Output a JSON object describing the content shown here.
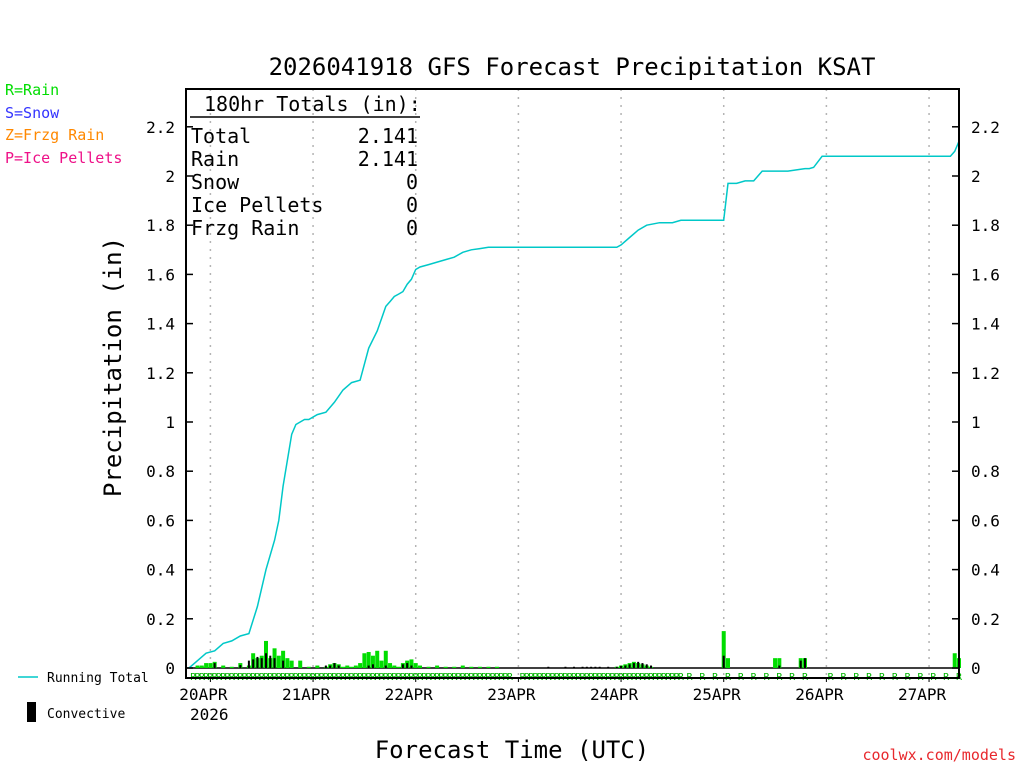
{
  "chart_data": {
    "type": "bar",
    "title": "2026041918 GFS Forecast Precipitation KSAT",
    "xlabel": "Forecast Time (UTC)",
    "ylabel": "Precipitation (in)",
    "ylim": [
      0,
      2.35
    ],
    "yticks": [
      0,
      0.2,
      0.4,
      0.6,
      0.8,
      1,
      1.2,
      1.4,
      1.6,
      1.8,
      2,
      2.2
    ],
    "ytick_labels": [
      "0",
      "0.2",
      "0.4",
      "0.6",
      "0.8",
      "1",
      "1.2",
      "1.4",
      "1.6",
      "1.8",
      "2",
      "2.2"
    ],
    "xlim_hours": [
      0,
      180
    ],
    "day_hours": [
      5,
      29,
      53,
      77,
      101,
      125,
      149,
      173
    ],
    "day_labels": [
      "20APR",
      "21APR",
      "22APR",
      "23APR",
      "24APR",
      "25APR",
      "26APR",
      "27APR"
    ],
    "year_label": "2026",
    "type_legend": [
      {
        "label": "R=Rain",
        "color": "#00dd00"
      },
      {
        "label": "S=Snow",
        "color": "#3333ff"
      },
      {
        "label": "Z=Frzg Rain",
        "color": "#ff8800"
      },
      {
        "label": "P=Ice Pellets",
        "color": "#ee1188"
      }
    ],
    "totals": {
      "header": "180hr Totals (in):",
      "rows": [
        {
          "label": "Total",
          "value": "2.141"
        },
        {
          "label": "Rain",
          "value": "2.141"
        },
        {
          "label": "Snow",
          "value": "0"
        },
        {
          "label": "Ice Pellets",
          "value": "0"
        },
        {
          "label": "Frzg Rain",
          "value": "0"
        }
      ]
    },
    "series": [
      {
        "name": "Running Total",
        "color": "#00c8c8",
        "x": [
          0,
          2,
          4,
          6,
          8,
          10,
          12,
          14,
          16,
          18,
          20,
          21,
          22,
          24,
          25,
          26,
          27,
          28,
          30,
          32,
          34,
          36,
          38,
          40,
          42,
          44,
          45,
          46,
          47,
          48,
          49,
          50,
          51,
          52,
          53,
          54,
          56,
          58,
          60,
          62,
          64,
          66,
          68,
          70,
          72,
          74,
          76,
          78,
          80,
          85,
          90,
          95,
          100,
          101,
          103,
          105,
          107,
          110,
          113,
          115,
          120,
          123,
          124,
          125,
          126,
          128,
          130,
          132,
          134,
          136,
          138,
          140,
          142,
          144,
          145,
          146,
          148,
          150,
          155,
          160,
          165,
          170,
          175,
          177,
          178,
          179,
          180
        ],
        "values": [
          0.0,
          0.03,
          0.06,
          0.07,
          0.1,
          0.11,
          0.13,
          0.14,
          0.25,
          0.4,
          0.52,
          0.6,
          0.74,
          0.95,
          0.99,
          1.0,
          1.01,
          1.01,
          1.03,
          1.04,
          1.08,
          1.13,
          1.16,
          1.17,
          1.3,
          1.37,
          1.42,
          1.47,
          1.49,
          1.51,
          1.52,
          1.53,
          1.56,
          1.58,
          1.62,
          1.63,
          1.64,
          1.65,
          1.66,
          1.67,
          1.69,
          1.7,
          1.705,
          1.71,
          1.71,
          1.71,
          1.71,
          1.71,
          1.71,
          1.71,
          1.71,
          1.71,
          1.71,
          1.72,
          1.75,
          1.78,
          1.8,
          1.81,
          1.81,
          1.82,
          1.82,
          1.82,
          1.82,
          1.82,
          1.97,
          1.97,
          1.98,
          1.98,
          2.02,
          2.02,
          2.02,
          2.02,
          2.025,
          2.03,
          2.03,
          2.035,
          2.08,
          2.08,
          2.08,
          2.08,
          2.08,
          2.08,
          2.08,
          2.08,
          2.08,
          2.1,
          2.141
        ]
      },
      {
        "name": "Convective",
        "color": "#000000",
        "x": [
          6,
          12,
          14,
          15,
          16,
          17,
          18,
          19,
          20,
          22,
          32,
          33,
          34,
          35,
          42,
          43,
          46,
          50,
          51,
          52,
          84,
          88,
          90,
          92,
          93,
          94,
          95,
          96,
          98,
          100,
          101,
          102,
          103,
          104,
          105,
          106,
          107,
          108,
          125,
          138,
          143,
          144
        ],
        "values": [
          0.02,
          0.012,
          0.03,
          0.035,
          0.045,
          0.04,
          0.06,
          0.05,
          0.04,
          0.03,
          0.01,
          0.01,
          0.02,
          0.01,
          0.01,
          0.015,
          0.01,
          0.015,
          0.02,
          0.01,
          0.005,
          0.005,
          0.005,
          0.005,
          0.005,
          0.005,
          0.005,
          0.005,
          0.005,
          0.005,
          0.008,
          0.01,
          0.015,
          0.02,
          0.025,
          0.02,
          0.015,
          0.01,
          0.05,
          0.01,
          0.03,
          0.04
        ]
      },
      {
        "name": "Rain",
        "color": "#00dd00",
        "x": [
          2,
          3,
          4,
          5,
          6,
          8,
          10,
          12,
          14,
          15,
          16,
          17,
          18,
          19,
          20,
          21,
          22,
          23,
          24,
          26,
          28,
          30,
          32,
          33,
          34,
          35,
          36,
          37,
          38,
          39,
          40,
          41,
          42,
          43,
          44,
          45,
          46,
          47,
          48,
          49,
          50,
          51,
          52,
          53,
          54,
          56,
          58,
          60,
          62,
          64,
          66,
          68,
          70,
          72,
          100,
          101,
          102,
          103,
          104,
          105,
          106,
          107,
          108,
          125,
          126,
          137,
          138,
          143,
          144,
          179,
          180
        ],
        "values": [
          0.01,
          0.01,
          0.02,
          0.02,
          0.025,
          0.01,
          0.005,
          0.02,
          0.01,
          0.06,
          0.04,
          0.05,
          0.11,
          0.04,
          0.08,
          0.05,
          0.07,
          0.04,
          0.03,
          0.03,
          0.005,
          0.01,
          0.005,
          0.015,
          0.02,
          0.015,
          0.005,
          0.01,
          0.005,
          0.01,
          0.02,
          0.06,
          0.065,
          0.05,
          0.07,
          0.03,
          0.07,
          0.02,
          0.01,
          0.005,
          0.02,
          0.03,
          0.035,
          0.02,
          0.01,
          0.005,
          0.01,
          0.005,
          0.005,
          0.01,
          0.005,
          0.005,
          0.005,
          0.005,
          0.005,
          0.01,
          0.015,
          0.02,
          0.025,
          0.02,
          0.015,
          0.01,
          0.005,
          0.15,
          0.04,
          0.04,
          0.04,
          0.04,
          0.04,
          0.06,
          0.04
        ]
      }
    ],
    "type_marker_hours": [
      1,
      2,
      3,
      4,
      5,
      6,
      7,
      8,
      9,
      10,
      11,
      12,
      13,
      14,
      15,
      16,
      17,
      18,
      19,
      20,
      21,
      22,
      23,
      24,
      25,
      26,
      27,
      28,
      29,
      30,
      31,
      32,
      33,
      34,
      35,
      36,
      37,
      38,
      39,
      40,
      41,
      42,
      43,
      44,
      45,
      46,
      47,
      48,
      49,
      50,
      51,
      52,
      53,
      54,
      55,
      56,
      57,
      58,
      59,
      60,
      61,
      62,
      63,
      64,
      65,
      66,
      67,
      68,
      69,
      70,
      71,
      72,
      73,
      74,
      75,
      78,
      79,
      80,
      81,
      82,
      83,
      84,
      85,
      86,
      87,
      88,
      89,
      90,
      91,
      92,
      93,
      94,
      95,
      96,
      97,
      98,
      99,
      100,
      101,
      102,
      103,
      104,
      105,
      106,
      107,
      108,
      109,
      110,
      111,
      112,
      113,
      114,
      115,
      117,
      120,
      123,
      126,
      129,
      132,
      135,
      138,
      141,
      144,
      150,
      153,
      156,
      159,
      162,
      165,
      168,
      171,
      174,
      177,
      180
    ],
    "legend_entries": [
      {
        "label": "Running Total",
        "style": "line"
      },
      {
        "label": "Convective",
        "style": "bar"
      }
    ],
    "credit": "coolwx.com/models",
    "marker_letter": "R"
  }
}
